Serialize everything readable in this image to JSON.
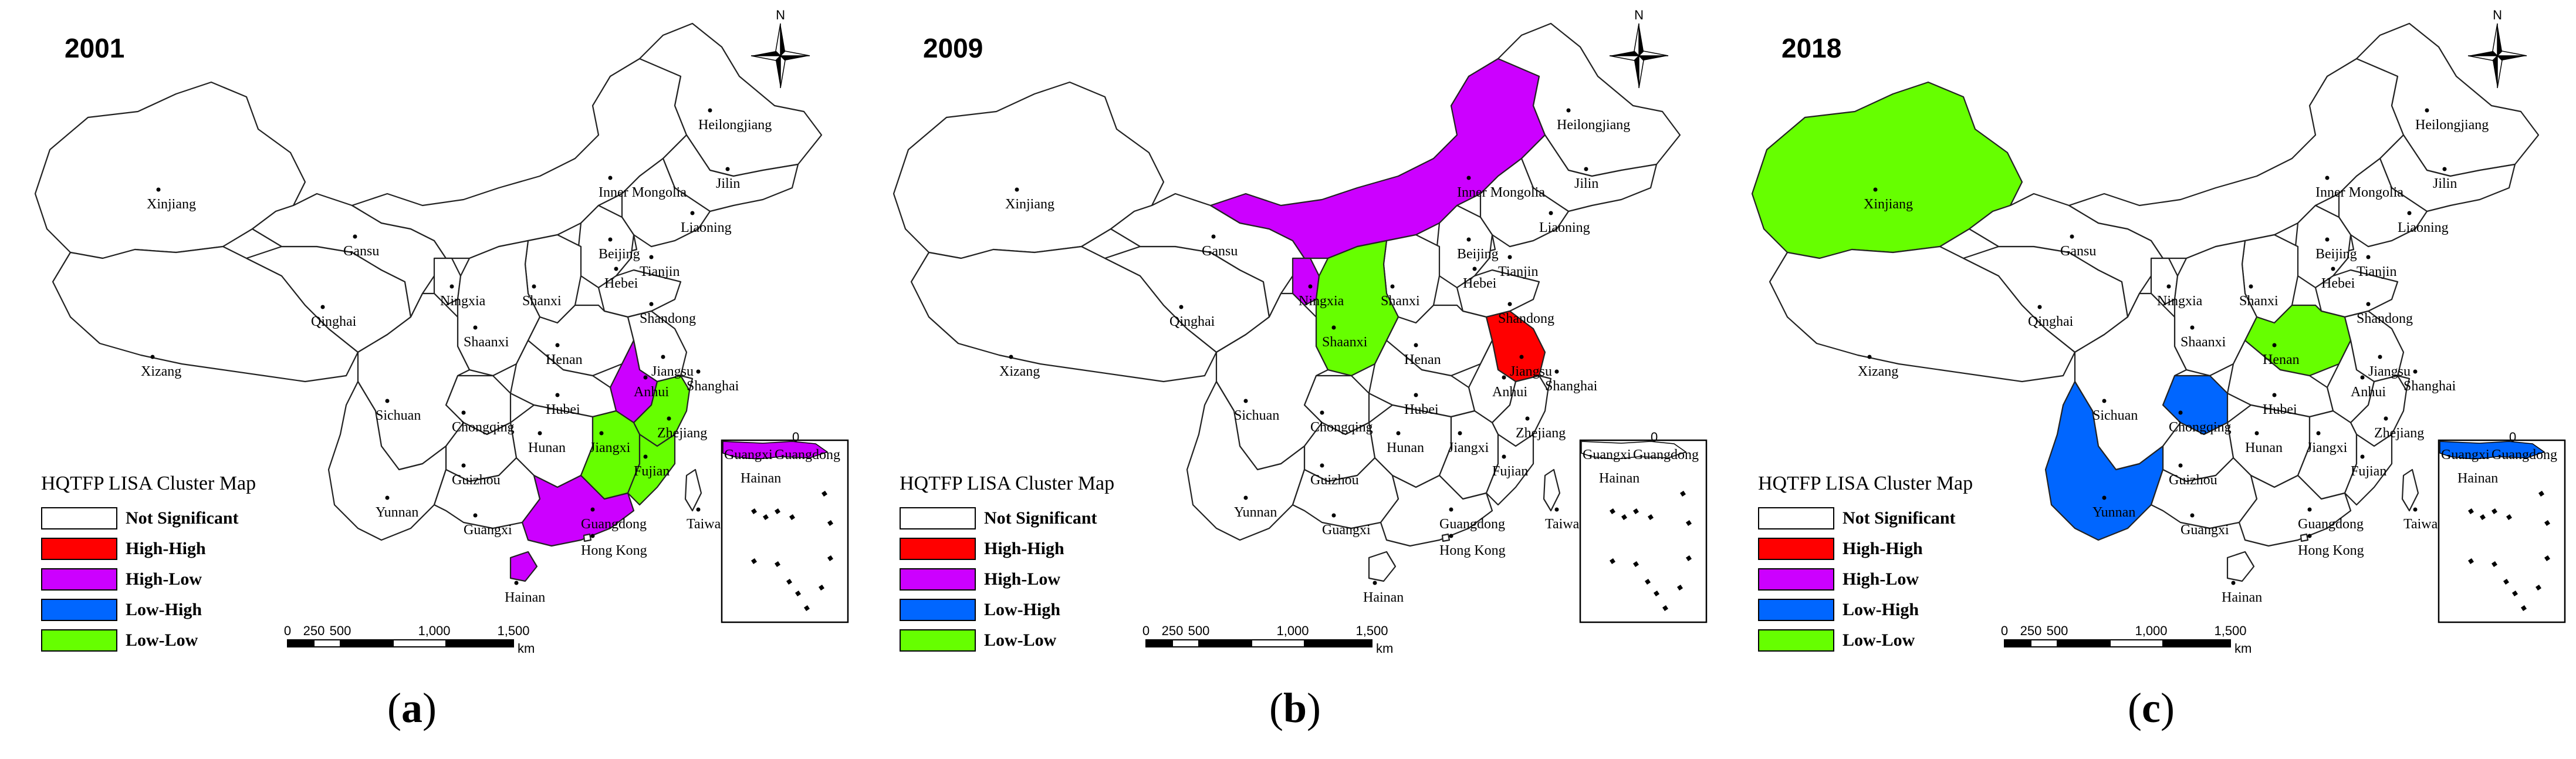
{
  "panels": [
    {
      "id": "a",
      "year": "2001",
      "caption_letter": "a",
      "highlights": {
        "Anhui": "High-Low",
        "Guangdong": "High-Low",
        "Hainan": "High-Low",
        "Zhejiang": "Low-Low",
        "Jiangxi": "Low-Low",
        "Fujian": "Low-Low",
        "Guangdong-inset": "High-Low"
      }
    },
    {
      "id": "b",
      "year": "2009",
      "caption_letter": "b",
      "highlights": {
        "Inner Mongolia": "High-Low",
        "Ningxia": "High-Low",
        "Shaanxi": "Low-Low",
        "Jiangsu": "High-High"
      }
    },
    {
      "id": "c",
      "year": "2018",
      "caption_letter": "c",
      "highlights": {
        "Xinjiang": "Low-Low",
        "Henan": "Low-Low",
        "Yunnan": "Low-High",
        "Chongqing": "Low-High",
        "Guangdong-inset": "Low-High"
      }
    }
  ],
  "province_labels": [
    "Heilongjiang",
    "Jilin",
    "Inner Mongolia",
    "Liaoning",
    "Xinjiang",
    "Gansu",
    "Beijing",
    "Tianjin",
    "Hebei",
    "Ningxia",
    "Shanxi",
    "Qinghai",
    "Shandong",
    "Shaanxi",
    "Xizang",
    "Henan",
    "Jiangsu",
    "Shanghai",
    "Anhui",
    "Hubei",
    "Sichuan",
    "Chongqing",
    "Zhejiang",
    "Hunan",
    "Jiangxi",
    "Fujian",
    "Guizhou",
    "Yunnan",
    "Guangxi",
    "Guangdong",
    "Taiwan",
    "Hong Kong",
    "Hainan"
  ],
  "inset_labels": [
    "Guangxi",
    "Guangdong",
    "Hainan"
  ],
  "legend": {
    "title": "HQTFP LISA Cluster Map",
    "items": [
      {
        "label": "Not Significant",
        "color": "#ffffff"
      },
      {
        "label": "High-High",
        "color": "#ff0000"
      },
      {
        "label": "High-Low",
        "color": "#cc00ff"
      },
      {
        "label": "Low-High",
        "color": "#0066ff"
      },
      {
        "label": "Low-Low",
        "color": "#66ff00"
      }
    ]
  },
  "scale_bar": {
    "ticks": [
      "0",
      "250",
      "500",
      "1,000",
      "1,500"
    ],
    "unit": "km"
  },
  "north_label": "N",
  "inset_zero": "0"
}
